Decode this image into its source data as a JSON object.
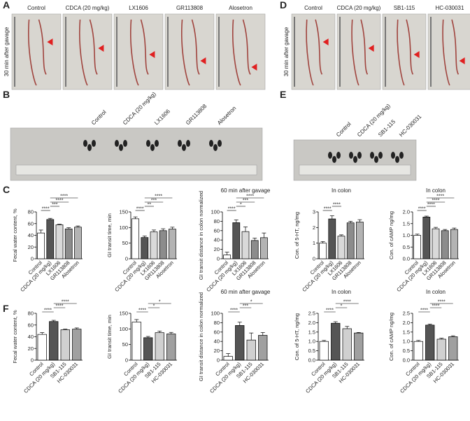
{
  "letters": [
    "A",
    "B",
    "C",
    "D",
    "E",
    "F"
  ],
  "photo_panels": [
    {
      "side_label": "30 min after gavage",
      "labels": [
        "Control",
        "CDCA (20 mg/kg)",
        "LX1606",
        "GR113808",
        "Alosetron"
      ]
    },
    {
      "side_label": "30 min after gavage",
      "labels": [
        "Control",
        "CDCA (20 mg/kg)",
        "SB1-115",
        "HC-030031"
      ]
    },
    {
      "labels": [
        "Control",
        "CDCA (20 mg/kg)",
        "LX1606",
        "GR113808",
        "Alosetron"
      ]
    },
    {
      "labels": [
        "Control",
        "CDCA (20 mg/kg)",
        "SB1-115",
        "HC-030031"
      ]
    }
  ],
  "chart_data": [
    {
      "type": "bar",
      "ylabel": "Fecal water content, %",
      "categories": [
        "Control",
        "CDCA (20 mg/kg)",
        "LX1606",
        "GR113808",
        "Alosetron"
      ],
      "values": [
        44,
        67,
        58,
        51,
        54
      ],
      "errors": [
        5,
        2,
        1,
        2,
        2
      ],
      "colors": [
        "#ffffff",
        "#555555",
        "#d9d9d9",
        "#8c8c8c",
        "#b3b3b3"
      ],
      "ylim": [
        0,
        80
      ],
      "yticks": [
        0,
        20,
        40,
        60,
        80
      ],
      "comparisons": [
        {
          "groups": [
            0,
            1
          ],
          "label": "****"
        },
        {
          "groups": [
            1,
            2
          ],
          "label": "***"
        },
        {
          "groups": [
            1,
            3
          ],
          "label": "****"
        },
        {
          "groups": [
            1,
            4
          ],
          "label": "****"
        }
      ]
    },
    {
      "type": "bar",
      "ylabel": "GI transit time, min",
      "categories": [
        "Control",
        "CDCA (20 mg/kg)",
        "LX1606",
        "GR113808",
        "Alosetron"
      ],
      "values": [
        128,
        68,
        86,
        90,
        95
      ],
      "errors": [
        6,
        5,
        6,
        6,
        6
      ],
      "colors": [
        "#ffffff",
        "#555555",
        "#d9d9d9",
        "#8c8c8c",
        "#b3b3b3"
      ],
      "ylim": [
        0,
        150
      ],
      "yticks": [
        0,
        50,
        100,
        150
      ],
      "comparisons": [
        {
          "groups": [
            0,
            1
          ],
          "label": "****"
        },
        {
          "groups": [
            1,
            2
          ],
          "label": "**"
        },
        {
          "groups": [
            1,
            3
          ],
          "label": "***"
        },
        {
          "groups": [
            1,
            4
          ],
          "label": "****"
        }
      ]
    },
    {
      "type": "bar",
      "title": "60 min after gavage",
      "ylabel": "GI transit distance in colon normalized",
      "categories": [
        "Control",
        "CDCA (20 mg/kg)",
        "LX1606",
        "GR113808",
        "Alosetron"
      ],
      "values": [
        8,
        77,
        58,
        39,
        45
      ],
      "errors": [
        6,
        6,
        10,
        5,
        10
      ],
      "colors": [
        "#ffffff",
        "#555555",
        "#d9d9d9",
        "#8c8c8c",
        "#b3b3b3"
      ],
      "ylim": [
        0,
        100
      ],
      "yticks": [
        0,
        20,
        40,
        60,
        80,
        100
      ],
      "comparisons": [
        {
          "groups": [
            0,
            1
          ],
          "label": "****"
        },
        {
          "groups": [
            1,
            2
          ],
          "label": "*"
        },
        {
          "groups": [
            1,
            3
          ],
          "label": "***"
        },
        {
          "groups": [
            1,
            4
          ],
          "label": "****"
        }
      ]
    },
    {
      "type": "bar",
      "title": "In colon",
      "ylabel": "Con. of 5-HT, ng/mg",
      "categories": [
        "Control",
        "CDCA (20 mg/kg)",
        "LX1606",
        "GR113808",
        "Alosetron"
      ],
      "values": [
        1.0,
        2.55,
        1.45,
        2.3,
        2.35
      ],
      "errors": [
        0.1,
        0.2,
        0.08,
        0.1,
        0.15
      ],
      "colors": [
        "#ffffff",
        "#555555",
        "#d9d9d9",
        "#8c8c8c",
        "#b3b3b3"
      ],
      "ylim": [
        0,
        3
      ],
      "yticks": [
        0,
        1,
        2,
        3
      ],
      "comparisons": [
        {
          "groups": [
            0,
            1
          ],
          "label": "****"
        },
        {
          "groups": [
            1,
            2
          ],
          "label": "****"
        }
      ]
    },
    {
      "type": "bar",
      "title": "In colon",
      "ylabel": "Con. of cAMP ng/mg",
      "categories": [
        "Control",
        "CDCA (20 mg/kg)",
        "LX1606",
        "GR113808",
        "Alosetron"
      ],
      "values": [
        1.0,
        1.78,
        1.28,
        1.2,
        1.25
      ],
      "errors": [
        0.05,
        0.04,
        0.06,
        0.05,
        0.06
      ],
      "colors": [
        "#ffffff",
        "#555555",
        "#d9d9d9",
        "#8c8c8c",
        "#b3b3b3"
      ],
      "ylim": [
        0,
        2
      ],
      "yticks": [
        {
          "value": 0,
          "label": "0.0"
        },
        0.5,
        {
          "value": 1,
          "label": "1.0"
        },
        1.5,
        {
          "value": 2,
          "label": "2.0"
        }
      ],
      "comparisons": [
        {
          "groups": [
            0,
            1
          ],
          "label": "****"
        },
        {
          "groups": [
            1,
            2
          ],
          "label": "****"
        },
        {
          "groups": [
            1,
            3
          ],
          "label": "****"
        },
        {
          "groups": [
            1,
            4
          ],
          "label": "****"
        }
      ]
    },
    {
      "type": "bar",
      "ylabel": "Fecal water content, %",
      "categories": [
        "Control",
        "CDCA (20 mg/kg)",
        "SB1-115",
        "HC-030031"
      ],
      "values": [
        44,
        66,
        52,
        53
      ],
      "errors": [
        3,
        2,
        1,
        2
      ],
      "colors": [
        "#ffffff",
        "#555555",
        "#d0d0d0",
        "#a0a0a0"
      ],
      "ylim": [
        0,
        80
      ],
      "yticks": [
        0,
        20,
        40,
        60,
        80
      ],
      "comparisons": [
        {
          "groups": [
            0,
            1
          ],
          "label": "****"
        },
        {
          "groups": [
            1,
            2
          ],
          "label": "****"
        },
        {
          "groups": [
            1,
            3
          ],
          "label": "****"
        }
      ]
    },
    {
      "type": "bar",
      "ylabel": "GI transit time, min",
      "categories": [
        "Control",
        "CDCA (20 mg/kg)",
        "SB1-115",
        "HC-030031"
      ],
      "values": [
        122,
        72,
        88,
        84
      ],
      "errors": [
        8,
        4,
        5,
        5
      ],
      "colors": [
        "#ffffff",
        "#555555",
        "#d0d0d0",
        "#a0a0a0"
      ],
      "ylim": [
        0,
        150
      ],
      "yticks": [
        0,
        50,
        100,
        150
      ],
      "comparisons": [
        {
          "groups": [
            0,
            1
          ],
          "label": "****"
        },
        {
          "groups": [
            1,
            2
          ],
          "label": "*"
        },
        {
          "groups": [
            1,
            3
          ],
          "label": "*"
        }
      ]
    },
    {
      "type": "bar",
      "title": "60 min after gavage",
      "ylabel": "GI transit distance in colon normalized",
      "categories": [
        "Control",
        "CDCA (20 mg/kg)",
        "SB1-115",
        "HC-030031"
      ],
      "values": [
        8,
        74,
        43,
        53
      ],
      "errors": [
        6,
        7,
        15,
        6
      ],
      "colors": [
        "#ffffff",
        "#555555",
        "#d0d0d0",
        "#a0a0a0"
      ],
      "ylim": [
        0,
        100
      ],
      "yticks": [
        0,
        20,
        40,
        60,
        80,
        100
      ],
      "comparisons": [
        {
          "groups": [
            0,
            1
          ],
          "label": "****"
        },
        {
          "groups": [
            1,
            2
          ],
          "label": "***"
        },
        {
          "groups": [
            1,
            3
          ],
          "label": "*"
        }
      ]
    },
    {
      "type": "bar",
      "title": "In colon",
      "ylabel": "Con. of 5-HT, ng/mg",
      "categories": [
        "Control",
        "CDCA (20 mg/kg)",
        "SB1-115",
        "HC-030031"
      ],
      "values": [
        1.0,
        1.97,
        1.68,
        1.45
      ],
      "errors": [
        0.05,
        0.08,
        0.12,
        0.03
      ],
      "colors": [
        "#ffffff",
        "#555555",
        "#d0d0d0",
        "#a0a0a0"
      ],
      "ylim": [
        0,
        2.5
      ],
      "yticks": [
        {
          "value": 0,
          "label": "0.0"
        },
        0.5,
        {
          "value": 1,
          "label": "1.0"
        },
        1.5,
        {
          "value": 2,
          "label": "2.0"
        },
        2.5
      ],
      "comparisons": [
        {
          "groups": [
            0,
            1
          ],
          "label": "****"
        },
        {
          "groups": [
            1,
            2
          ],
          "label": "*"
        },
        {
          "groups": [
            1,
            3
          ],
          "label": "****"
        }
      ]
    },
    {
      "type": "bar",
      "title": "In colon",
      "ylabel": "Con. of cAMP ng/mg",
      "categories": [
        "Control",
        "CDCA (20 mg/kg)",
        "SB1-115",
        "HC-030031"
      ],
      "values": [
        1.0,
        1.87,
        1.12,
        1.25
      ],
      "errors": [
        0.05,
        0.05,
        0.05,
        0.05
      ],
      "colors": [
        "#ffffff",
        "#555555",
        "#d0d0d0",
        "#a0a0a0"
      ],
      "ylim": [
        0,
        2.5
      ],
      "yticks": [
        {
          "value": 0,
          "label": "0.0"
        },
        0.5,
        {
          "value": 1,
          "label": "1.0"
        },
        1.5,
        {
          "value": 2,
          "label": "2.0"
        },
        2.5
      ],
      "comparisons": [
        {
          "groups": [
            0,
            1
          ],
          "label": "****"
        },
        {
          "groups": [
            1,
            2
          ],
          "label": "****"
        },
        {
          "groups": [
            1,
            3
          ],
          "label": "****"
        }
      ]
    }
  ]
}
